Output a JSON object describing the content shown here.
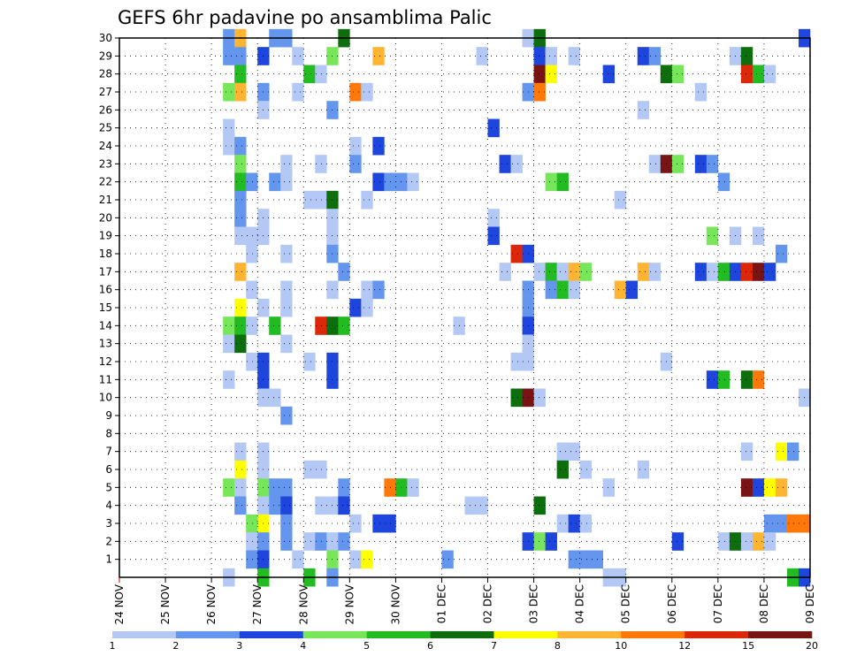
{
  "chart_data": {
    "type": "heatmap",
    "title": "GEFS 6hr padavine po ansamblima Palic",
    "y_ticks": [
      1,
      2,
      3,
      4,
      5,
      6,
      7,
      8,
      9,
      10,
      11,
      12,
      13,
      14,
      15,
      16,
      17,
      18,
      19,
      20,
      21,
      22,
      23,
      24,
      25,
      26,
      27,
      28,
      29,
      30
    ],
    "ylim": [
      0,
      30
    ],
    "x_tick_labels": [
      "24 NOV",
      "25 NOV",
      "26 NOV",
      "27 NOV",
      "28 NOV",
      "29 NOV",
      "30 NOV",
      "01 DEC",
      "02 DEC",
      "03 DEC",
      "04 DEC",
      "05 DEC",
      "06 DEC",
      "07 DEC",
      "08 DEC",
      "09 DEC"
    ],
    "x_time_steps_per_day": 4,
    "x_range_steps": [
      0,
      60
    ],
    "grid": true,
    "colorbar": {
      "labels": [
        "1",
        "2",
        "3",
        "4",
        "5",
        "6",
        "7",
        "8",
        "10",
        "12",
        "15",
        "20"
      ],
      "colors": [
        "#b4c8f5",
        "#6496ee",
        "#1e46dc",
        "#78e65a",
        "#22bb22",
        "#0e6e0e",
        "#ffff00",
        "#ffb432",
        "#ff780a",
        "#dc280a",
        "#781414"
      ]
    },
    "cells": [
      [
        9,
        30,
        2
      ],
      [
        10,
        30,
        8
      ],
      [
        13,
        30,
        2
      ],
      [
        14,
        30,
        2
      ],
      [
        19,
        30,
        6
      ],
      [
        35,
        30,
        1
      ],
      [
        36,
        30,
        6
      ],
      [
        59,
        30,
        3
      ],
      [
        9,
        29,
        2
      ],
      [
        10,
        29,
        2
      ],
      [
        12,
        29,
        3
      ],
      [
        15,
        29,
        1
      ],
      [
        18,
        29,
        4
      ],
      [
        22,
        29,
        8
      ],
      [
        31,
        29,
        1
      ],
      [
        36,
        29,
        3
      ],
      [
        37,
        29,
        1
      ],
      [
        39,
        29,
        1
      ],
      [
        45,
        29,
        3
      ],
      [
        46,
        29,
        2
      ],
      [
        53,
        29,
        1
      ],
      [
        54,
        29,
        6
      ],
      [
        10,
        28,
        5
      ],
      [
        16,
        28,
        5
      ],
      [
        17,
        28,
        1
      ],
      [
        36,
        28,
        11
      ],
      [
        37,
        28,
        7
      ],
      [
        42,
        28,
        3
      ],
      [
        47,
        28,
        6
      ],
      [
        48,
        28,
        4
      ],
      [
        54,
        28,
        10
      ],
      [
        55,
        28,
        5
      ],
      [
        56,
        28,
        1
      ],
      [
        9,
        27,
        4
      ],
      [
        10,
        27,
        8
      ],
      [
        12,
        27,
        2
      ],
      [
        15,
        27,
        1
      ],
      [
        20,
        27,
        9
      ],
      [
        21,
        27,
        1
      ],
      [
        35,
        27,
        2
      ],
      [
        36,
        27,
        9
      ],
      [
        50,
        27,
        1
      ],
      [
        12,
        26,
        1
      ],
      [
        18,
        26,
        2
      ],
      [
        45,
        26,
        1
      ],
      [
        9,
        25,
        1
      ],
      [
        32,
        25,
        3
      ],
      [
        9,
        24,
        1
      ],
      [
        10,
        24,
        2
      ],
      [
        20,
        24,
        1
      ],
      [
        22,
        24,
        3
      ],
      [
        10,
        23,
        4
      ],
      [
        14,
        23,
        1
      ],
      [
        17,
        23,
        1
      ],
      [
        20,
        23,
        2
      ],
      [
        33,
        23,
        3
      ],
      [
        34,
        23,
        1
      ],
      [
        46,
        23,
        1
      ],
      [
        47,
        23,
        11
      ],
      [
        48,
        23,
        4
      ],
      [
        50,
        23,
        3
      ],
      [
        51,
        23,
        2
      ],
      [
        10,
        22,
        5
      ],
      [
        11,
        22,
        2
      ],
      [
        13,
        22,
        2
      ],
      [
        14,
        22,
        1
      ],
      [
        22,
        22,
        3
      ],
      [
        23,
        22,
        2
      ],
      [
        24,
        22,
        2
      ],
      [
        25,
        22,
        1
      ],
      [
        37,
        22,
        4
      ],
      [
        38,
        22,
        5
      ],
      [
        52,
        22,
        2
      ],
      [
        10,
        21,
        2
      ],
      [
        16,
        21,
        1
      ],
      [
        17,
        21,
        1
      ],
      [
        18,
        21,
        6
      ],
      [
        21,
        21,
        1
      ],
      [
        43,
        21,
        1
      ],
      [
        10,
        20,
        2
      ],
      [
        12,
        20,
        1
      ],
      [
        18,
        20,
        1
      ],
      [
        32,
        20,
        1
      ],
      [
        10,
        19,
        1
      ],
      [
        11,
        19,
        1
      ],
      [
        12,
        19,
        1
      ],
      [
        18,
        19,
        1
      ],
      [
        32,
        19,
        3
      ],
      [
        51,
        19,
        4
      ],
      [
        53,
        19,
        1
      ],
      [
        55,
        19,
        1
      ],
      [
        11,
        18,
        1
      ],
      [
        14,
        18,
        1
      ],
      [
        18,
        18,
        2
      ],
      [
        34,
        18,
        10
      ],
      [
        35,
        18,
        3
      ],
      [
        57,
        18,
        2
      ],
      [
        10,
        17,
        8
      ],
      [
        19,
        17,
        2
      ],
      [
        33,
        17,
        1
      ],
      [
        36,
        17,
        1
      ],
      [
        37,
        17,
        5
      ],
      [
        38,
        17,
        1
      ],
      [
        39,
        17,
        8
      ],
      [
        40,
        17,
        4
      ],
      [
        45,
        17,
        8
      ],
      [
        46,
        17,
        1
      ],
      [
        50,
        17,
        3
      ],
      [
        51,
        17,
        1
      ],
      [
        52,
        17,
        5
      ],
      [
        53,
        17,
        3
      ],
      [
        54,
        17,
        10
      ],
      [
        55,
        17,
        11
      ],
      [
        56,
        17,
        3
      ],
      [
        11,
        16,
        1
      ],
      [
        14,
        16,
        1
      ],
      [
        18,
        16,
        1
      ],
      [
        21,
        16,
        1
      ],
      [
        22,
        16,
        2
      ],
      [
        35,
        16,
        2
      ],
      [
        37,
        16,
        2
      ],
      [
        38,
        16,
        5
      ],
      [
        39,
        16,
        1
      ],
      [
        43,
        16,
        8
      ],
      [
        44,
        16,
        3
      ],
      [
        10,
        15,
        7
      ],
      [
        12,
        15,
        1
      ],
      [
        14,
        15,
        1
      ],
      [
        20,
        15,
        3
      ],
      [
        21,
        15,
        1
      ],
      [
        35,
        15,
        2
      ],
      [
        9,
        14,
        4
      ],
      [
        10,
        14,
        5
      ],
      [
        11,
        14,
        1
      ],
      [
        13,
        14,
        5
      ],
      [
        17,
        14,
        10
      ],
      [
        18,
        14,
        6
      ],
      [
        19,
        14,
        5
      ],
      [
        29,
        14,
        1
      ],
      [
        35,
        14,
        3
      ],
      [
        9,
        13,
        1
      ],
      [
        10,
        13,
        6
      ],
      [
        14,
        13,
        1
      ],
      [
        35,
        13,
        1
      ],
      [
        11,
        12,
        1
      ],
      [
        12,
        12,
        3
      ],
      [
        16,
        12,
        1
      ],
      [
        18,
        12,
        3
      ],
      [
        34,
        12,
        1
      ],
      [
        35,
        12,
        1
      ],
      [
        47,
        12,
        1
      ],
      [
        9,
        11,
        1
      ],
      [
        12,
        11,
        3
      ],
      [
        18,
        11,
        3
      ],
      [
        51,
        11,
        3
      ],
      [
        52,
        11,
        5
      ],
      [
        54,
        11,
        6
      ],
      [
        55,
        11,
        9
      ],
      [
        12,
        10,
        1
      ],
      [
        13,
        10,
        1
      ],
      [
        34,
        10,
        6
      ],
      [
        35,
        10,
        11
      ],
      [
        36,
        10,
        1
      ],
      [
        59,
        10,
        1
      ],
      [
        14,
        9,
        2
      ],
      [
        10,
        7,
        1
      ],
      [
        12,
        7,
        1
      ],
      [
        38,
        7,
        1
      ],
      [
        39,
        7,
        1
      ],
      [
        54,
        7,
        1
      ],
      [
        57,
        7,
        7
      ],
      [
        58,
        7,
        2
      ],
      [
        10,
        6,
        7
      ],
      [
        12,
        6,
        1
      ],
      [
        16,
        6,
        1
      ],
      [
        17,
        6,
        1
      ],
      [
        38,
        6,
        6
      ],
      [
        40,
        6,
        1
      ],
      [
        45,
        6,
        1
      ],
      [
        9,
        5,
        4
      ],
      [
        10,
        5,
        1
      ],
      [
        12,
        5,
        4
      ],
      [
        13,
        5,
        2
      ],
      [
        14,
        5,
        2
      ],
      [
        19,
        5,
        2
      ],
      [
        23,
        5,
        9
      ],
      [
        24,
        5,
        5
      ],
      [
        25,
        5,
        1
      ],
      [
        42,
        5,
        1
      ],
      [
        54,
        5,
        11
      ],
      [
        55,
        5,
        3
      ],
      [
        56,
        5,
        7
      ],
      [
        57,
        5,
        8
      ],
      [
        10,
        4,
        2
      ],
      [
        12,
        4,
        1
      ],
      [
        13,
        4,
        2
      ],
      [
        14,
        4,
        3
      ],
      [
        17,
        4,
        1
      ],
      [
        18,
        4,
        1
      ],
      [
        19,
        4,
        3
      ],
      [
        30,
        4,
        1
      ],
      [
        31,
        4,
        1
      ],
      [
        36,
        4,
        6
      ],
      [
        11,
        3,
        4
      ],
      [
        12,
        3,
        7
      ],
      [
        14,
        3,
        2
      ],
      [
        20,
        3,
        1
      ],
      [
        22,
        3,
        3
      ],
      [
        23,
        3,
        3
      ],
      [
        38,
        3,
        1
      ],
      [
        39,
        3,
        3
      ],
      [
        40,
        3,
        1
      ],
      [
        56,
        3,
        2
      ],
      [
        57,
        3,
        2
      ],
      [
        58,
        3,
        9
      ],
      [
        59,
        3,
        9
      ],
      [
        11,
        2,
        1
      ],
      [
        12,
        2,
        2
      ],
      [
        14,
        2,
        2
      ],
      [
        16,
        2,
        1
      ],
      [
        17,
        2,
        2
      ],
      [
        18,
        2,
        1
      ],
      [
        19,
        2,
        2
      ],
      [
        35,
        2,
        3
      ],
      [
        36,
        2,
        4
      ],
      [
        37,
        2,
        3
      ],
      [
        48,
        2,
        3
      ],
      [
        52,
        2,
        1
      ],
      [
        53,
        2,
        6
      ],
      [
        54,
        2,
        1
      ],
      [
        55,
        2,
        8
      ],
      [
        56,
        2,
        1
      ],
      [
        11,
        1,
        2
      ],
      [
        12,
        1,
        3
      ],
      [
        15,
        1,
        1
      ],
      [
        18,
        1,
        4
      ],
      [
        20,
        1,
        1
      ],
      [
        21,
        1,
        7
      ],
      [
        28,
        1,
        2
      ],
      [
        39,
        1,
        2
      ],
      [
        40,
        1,
        2
      ],
      [
        41,
        1,
        2
      ],
      [
        9,
        0,
        1
      ],
      [
        12,
        0,
        5
      ],
      [
        16,
        0,
        5
      ],
      [
        18,
        0,
        2
      ],
      [
        42,
        0,
        1
      ],
      [
        43,
        0,
        1
      ],
      [
        58,
        0,
        5
      ],
      [
        59,
        0,
        3
      ]
    ]
  }
}
